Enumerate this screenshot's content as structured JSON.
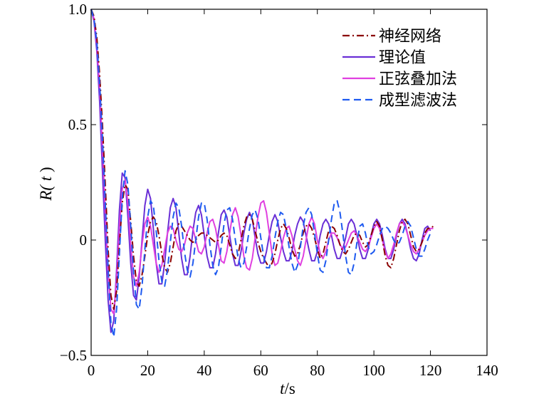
{
  "chart_data": {
    "type": "line",
    "title": "",
    "xlabel_italic": "t",
    "xlabel_unit": "/s",
    "ylabel_prefix": "R(",
    "ylabel_italic": " t",
    "ylabel_suffix": " )",
    "xlim": [
      0,
      140
    ],
    "ylim": [
      -0.5,
      1.0
    ],
    "xticks": [
      0,
      20,
      40,
      60,
      80,
      100,
      120,
      140
    ],
    "xtick_labels": [
      "0",
      "20",
      "40",
      "60",
      "80",
      "100",
      "120",
      "140"
    ],
    "yticks": [
      -0.5,
      0,
      0.5,
      1.0
    ],
    "ytick_labels": [
      "−0.5",
      "0",
      "0.5",
      "1.0"
    ],
    "grid": false,
    "legend_position": "top-right",
    "series": [
      {
        "name": "神经网络",
        "color": "#8B0000",
        "dash": "dashdot",
        "x": [
          0,
          1,
          2,
          3,
          4,
          5,
          6,
          7,
          8,
          9,
          10,
          11,
          12,
          13,
          14,
          15,
          16,
          17,
          18,
          19,
          20,
          21,
          22,
          23,
          24,
          25,
          26,
          27,
          28,
          29,
          30,
          31,
          32,
          33,
          34,
          35,
          36,
          37,
          38,
          39,
          40,
          41,
          42,
          43,
          44,
          45,
          46,
          47,
          48,
          49,
          50,
          51,
          52,
          53,
          54,
          55,
          56,
          57,
          58,
          59,
          60,
          61,
          62,
          63,
          64,
          65,
          66,
          67,
          68,
          69,
          70,
          71,
          72,
          73,
          74,
          75,
          76,
          77,
          78,
          79,
          80,
          81,
          82,
          83,
          84,
          85,
          86,
          87,
          88,
          89,
          90,
          91,
          92,
          93,
          94,
          95,
          96,
          97,
          98,
          99,
          100,
          101,
          102,
          103,
          104,
          105,
          106,
          107,
          108,
          109,
          110,
          111,
          112,
          113,
          114,
          115,
          116,
          117,
          118,
          119,
          120,
          121
        ],
        "y": [
          1.0,
          0.97,
          0.88,
          0.72,
          0.5,
          0.24,
          -0.04,
          -0.24,
          -0.3,
          -0.22,
          -0.02,
          0.16,
          0.24,
          0.22,
          0.08,
          -0.07,
          -0.18,
          -0.2,
          -0.15,
          -0.07,
          0.02,
          0.08,
          0.1,
          0.08,
          0.02,
          -0.06,
          -0.12,
          -0.14,
          -0.1,
          -0.03,
          0.04,
          0.07,
          0.06,
          0.04,
          0.02,
          0.0,
          -0.01,
          0.0,
          0.02,
          0.03,
          0.03,
          0.02,
          0.01,
          0.0,
          -0.01,
          0.0,
          0.02,
          0.03,
          0.02,
          -0.02,
          -0.06,
          -0.08,
          -0.06,
          0.0,
          0.06,
          0.1,
          0.11,
          0.09,
          0.04,
          -0.01,
          -0.05,
          -0.08,
          -0.1,
          -0.12,
          -0.1,
          -0.06,
          0.0,
          0.05,
          0.07,
          0.05,
          0.01,
          -0.04,
          -0.07,
          -0.06,
          -0.02,
          0.03,
          0.06,
          0.07,
          0.05,
          0.01,
          -0.04,
          -0.08,
          -0.06,
          -0.01,
          0.04,
          0.06,
          0.05,
          0.02,
          -0.02,
          -0.05,
          -0.06,
          -0.04,
          -0.01,
          0.02,
          0.03,
          0.02,
          -0.01,
          -0.03,
          -0.02,
          0.02,
          0.06,
          0.08,
          0.06,
          0.0,
          -0.07,
          -0.11,
          -0.12,
          -0.08,
          -0.02,
          0.04,
          0.08,
          0.09,
          0.07,
          0.02,
          -0.03,
          -0.05,
          -0.04,
          -0.01,
          0.03,
          0.05,
          0.05,
          0.06
        ]
      },
      {
        "name": "理论值",
        "color": "#6A2FD6",
        "dash": "solid",
        "x": [
          0,
          1,
          2,
          3,
          4,
          5,
          6,
          7,
          8,
          9,
          10,
          11,
          12,
          13,
          14,
          15,
          16,
          17,
          18,
          19,
          20,
          21,
          22,
          23,
          24,
          25,
          26,
          27,
          28,
          29,
          30,
          31,
          32,
          33,
          34,
          35,
          36,
          37,
          38,
          39,
          40,
          41,
          42,
          43,
          44,
          45,
          46,
          47,
          48,
          49,
          50,
          51,
          52,
          53,
          54,
          55,
          56,
          57,
          58,
          59,
          60,
          61,
          62,
          63,
          64,
          65,
          66,
          67,
          68,
          69,
          70,
          71,
          72,
          73,
          74,
          75,
          76,
          77,
          78,
          79,
          80,
          81,
          82,
          83,
          84,
          85,
          86,
          87,
          88,
          89,
          90,
          91,
          92,
          93,
          94,
          95,
          96,
          97,
          98,
          99,
          100,
          101,
          102,
          103,
          104,
          105,
          106,
          107,
          108,
          109,
          110,
          111,
          112,
          113,
          114,
          115,
          116,
          117,
          118,
          119,
          120
        ],
        "y": [
          1.0,
          0.95,
          0.82,
          0.6,
          0.3,
          0.0,
          -0.26,
          -0.4,
          -0.35,
          -0.13,
          0.13,
          0.29,
          0.27,
          0.1,
          -0.1,
          -0.24,
          -0.26,
          -0.16,
          0.0,
          0.15,
          0.22,
          0.18,
          0.05,
          -0.1,
          -0.19,
          -0.19,
          -0.1,
          0.03,
          0.14,
          0.18,
          0.14,
          0.03,
          -0.08,
          -0.15,
          -0.15,
          -0.07,
          0.04,
          0.12,
          0.15,
          0.11,
          0.02,
          -0.07,
          -0.12,
          -0.12,
          -0.06,
          0.03,
          0.11,
          0.13,
          0.1,
          0.02,
          -0.06,
          -0.11,
          -0.11,
          -0.05,
          0.03,
          0.09,
          0.12,
          0.09,
          0.01,
          -0.06,
          -0.1,
          -0.1,
          -0.05,
          0.02,
          0.08,
          0.11,
          0.08,
          0.01,
          -0.05,
          -0.09,
          -0.09,
          -0.05,
          0.02,
          0.07,
          0.1,
          0.08,
          0.02,
          -0.04,
          -0.09,
          -0.09,
          -0.05,
          0.02,
          0.07,
          0.09,
          0.07,
          0.02,
          -0.04,
          -0.08,
          -0.08,
          -0.04,
          0.01,
          0.07,
          0.09,
          0.07,
          0.02,
          -0.04,
          -0.08,
          -0.08,
          -0.04,
          0.02,
          0.07,
          0.09,
          0.07,
          0.02,
          -0.04,
          -0.08,
          -0.08,
          -0.04,
          0.02,
          0.07,
          0.09,
          0.07,
          0.02,
          -0.04,
          -0.08,
          -0.09,
          -0.06,
          0.0,
          0.05,
          0.06,
          0.04
        ]
      },
      {
        "name": "正弦叠加法",
        "color": "#E040E0",
        "dash": "solid",
        "x": [
          0,
          1,
          2,
          3,
          4,
          5,
          6,
          7,
          8,
          9,
          10,
          11,
          12,
          13,
          14,
          15,
          16,
          17,
          18,
          19,
          20,
          21,
          22,
          23,
          24,
          25,
          26,
          27,
          28,
          29,
          30,
          31,
          32,
          33,
          34,
          35,
          36,
          37,
          38,
          39,
          40,
          41,
          42,
          43,
          44,
          45,
          46,
          47,
          48,
          49,
          50,
          51,
          52,
          53,
          54,
          55,
          56,
          57,
          58,
          59,
          60,
          61,
          62,
          63,
          64,
          65,
          66,
          67,
          68,
          69,
          70,
          71,
          72,
          73,
          74,
          75,
          76,
          77,
          78,
          79,
          80,
          81,
          82,
          83,
          84,
          85,
          86,
          87,
          88,
          89,
          90,
          91,
          92,
          93,
          94,
          95,
          96,
          97,
          98,
          99,
          100,
          101,
          102,
          103,
          104,
          105,
          106,
          107,
          108,
          109,
          110,
          111,
          112,
          113,
          114,
          115,
          116,
          117,
          118,
          119,
          120,
          121
        ],
        "y": [
          1.0,
          0.96,
          0.85,
          0.66,
          0.4,
          0.12,
          -0.14,
          -0.3,
          -0.32,
          -0.17,
          0.06,
          0.22,
          0.26,
          0.16,
          -0.02,
          -0.16,
          -0.2,
          -0.14,
          -0.02,
          0.07,
          0.1,
          0.06,
          -0.02,
          -0.1,
          -0.14,
          -0.11,
          -0.04,
          0.03,
          0.06,
          0.05,
          0.0,
          -0.04,
          -0.05,
          -0.02,
          0.03,
          0.06,
          0.05,
          0.0,
          -0.05,
          -0.06,
          -0.03,
          0.03,
          0.08,
          0.09,
          0.05,
          -0.02,
          -0.09,
          -0.1,
          -0.05,
          0.03,
          0.11,
          0.14,
          0.1,
          0.02,
          -0.07,
          -0.12,
          -0.13,
          -0.08,
          0.01,
          0.1,
          0.16,
          0.17,
          0.12,
          0.03,
          -0.06,
          -0.11,
          -0.1,
          -0.05,
          0.01,
          0.05,
          0.06,
          0.02,
          -0.04,
          -0.09,
          -0.11,
          -0.07,
          0.0,
          0.07,
          0.1,
          0.07,
          0.0,
          -0.06,
          -0.08,
          -0.05,
          0.0,
          0.03,
          0.03,
          0.01,
          -0.02,
          -0.04,
          -0.03,
          0.0,
          0.03,
          0.04,
          0.02,
          -0.01,
          -0.04,
          -0.05,
          -0.03,
          0.01,
          0.05,
          0.07,
          0.05,
          0.0,
          -0.05,
          -0.08,
          -0.06,
          -0.02,
          0.03,
          0.07,
          0.08,
          0.06,
          0.02,
          -0.02,
          -0.05,
          -0.06,
          -0.04,
          -0.01,
          0.02,
          0.04,
          0.05,
          0.05
        ]
      },
      {
        "name": "成型滤波法",
        "color": "#1E5AF0",
        "dash": "dashed",
        "x": [
          0,
          1,
          2,
          3,
          4,
          5,
          6,
          7,
          8,
          9,
          10,
          11,
          12,
          13,
          14,
          15,
          16,
          17,
          18,
          19,
          20,
          21,
          22,
          23,
          24,
          25,
          26,
          27,
          28,
          29,
          30,
          31,
          32,
          33,
          34,
          35,
          36,
          37,
          38,
          39,
          40,
          41,
          42,
          43,
          44,
          45,
          46,
          47,
          48,
          49,
          50,
          51,
          52,
          53,
          54,
          55,
          56,
          57,
          58,
          59,
          60,
          61,
          62,
          63,
          64,
          65,
          66,
          67,
          68,
          69,
          70,
          71,
          72,
          73,
          74,
          75,
          76,
          77,
          78,
          79,
          80,
          81,
          82,
          83,
          84,
          85,
          86,
          87,
          88,
          89,
          90,
          91,
          92,
          93,
          94,
          95,
          96,
          97,
          98,
          99,
          100,
          101,
          102,
          103,
          104,
          105,
          106,
          107,
          108,
          109,
          110,
          111,
          112,
          113,
          114,
          115,
          116,
          117,
          118,
          119,
          120
        ],
        "y": [
          1.0,
          0.96,
          0.86,
          0.68,
          0.44,
          0.16,
          -0.12,
          -0.36,
          -0.42,
          -0.3,
          -0.06,
          0.18,
          0.3,
          0.24,
          0.06,
          -0.14,
          -0.28,
          -0.3,
          -0.2,
          -0.04,
          0.1,
          0.17,
          0.15,
          0.04,
          -0.09,
          -0.18,
          -0.2,
          -0.13,
          -0.01,
          0.1,
          0.16,
          0.14,
          0.06,
          -0.05,
          -0.13,
          -0.16,
          -0.1,
          0.0,
          0.1,
          0.16,
          0.16,
          0.09,
          -0.02,
          -0.11,
          -0.15,
          -0.12,
          -0.03,
          0.07,
          0.13,
          0.14,
          0.09,
          0.0,
          -0.08,
          -0.12,
          -0.1,
          -0.03,
          0.05,
          0.11,
          0.13,
          0.09,
          0.01,
          -0.07,
          -0.12,
          -0.12,
          -0.07,
          0.01,
          0.08,
          0.12,
          0.11,
          0.05,
          -0.03,
          -0.1,
          -0.14,
          -0.11,
          -0.03,
          0.06,
          0.12,
          0.14,
          0.11,
          0.03,
          -0.06,
          -0.13,
          -0.14,
          -0.09,
          0.0,
          0.09,
          0.16,
          0.17,
          0.12,
          0.03,
          -0.07,
          -0.14,
          -0.15,
          -0.1,
          -0.01,
          0.06,
          0.07,
          0.03,
          -0.03,
          -0.06,
          -0.05,
          -0.02,
          0.02,
          0.05,
          0.06,
          0.05,
          0.03,
          0.0,
          -0.02,
          -0.01,
          0.02,
          0.06,
          0.08,
          0.06,
          0.01,
          -0.04,
          -0.07,
          -0.07,
          -0.04,
          0.0,
          0.03
        ]
      }
    ]
  }
}
